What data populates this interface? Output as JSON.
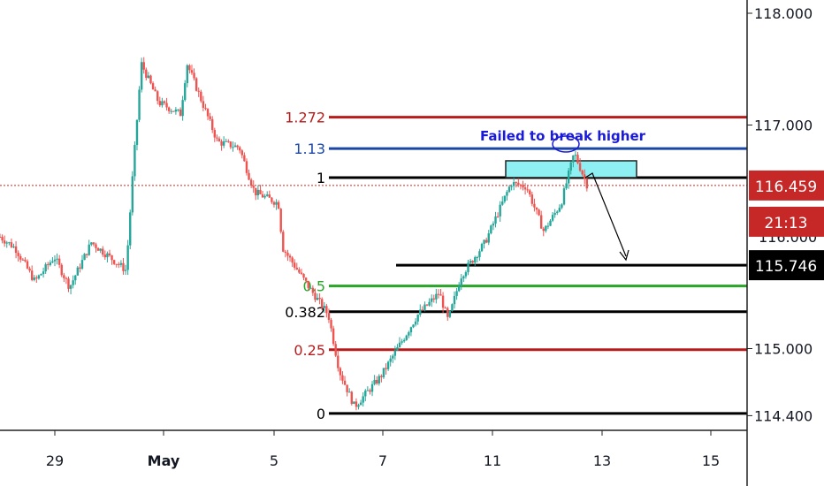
{
  "chart_data": {
    "type": "candlestick",
    "title": "",
    "xlabel": "",
    "ylabel": "",
    "ylim": [
      114.28,
      118.15
    ],
    "y_ticks": [
      "118.000",
      "117.000",
      "115.000",
      "114.400"
    ],
    "x_ticks": [
      "29",
      "May",
      "5",
      "7",
      "11",
      "13",
      "15"
    ],
    "colors": {
      "up": "#26a69a",
      "down": "#ef5350"
    },
    "price_anchors": [
      {
        "t": 0,
        "p": 116.0
      },
      {
        "t": 0.7,
        "p": 115.9
      },
      {
        "t": 1.6,
        "p": 115.6
      },
      {
        "t": 2.5,
        "p": 115.82
      },
      {
        "t": 3.2,
        "p": 115.55
      },
      {
        "t": 4.2,
        "p": 115.95
      },
      {
        "t": 5.8,
        "p": 115.7
      },
      {
        "t": 6.1,
        "p": 116.55
      },
      {
        "t": 6.5,
        "p": 117.55
      },
      {
        "t": 7.3,
        "p": 117.2
      },
      {
        "t": 8.3,
        "p": 117.1
      },
      {
        "t": 8.6,
        "p": 117.55
      },
      {
        "t": 10.0,
        "p": 116.85
      },
      {
        "t": 11.0,
        "p": 116.8
      },
      {
        "t": 11.7,
        "p": 116.4
      },
      {
        "t": 12.8,
        "p": 116.3
      },
      {
        "t": 13.0,
        "p": 115.9
      },
      {
        "t": 14.2,
        "p": 115.55
      },
      {
        "t": 15.1,
        "p": 115.3
      },
      {
        "t": 15.6,
        "p": 114.8
      },
      {
        "t": 16.3,
        "p": 114.48
      },
      {
        "t": 17.5,
        "p": 114.75
      },
      {
        "t": 19.2,
        "p": 115.3
      },
      {
        "t": 20.2,
        "p": 115.5
      },
      {
        "t": 20.6,
        "p": 115.25
      },
      {
        "t": 21.2,
        "p": 115.65
      },
      {
        "t": 22.3,
        "p": 115.95
      },
      {
        "t": 23.5,
        "p": 116.48
      },
      {
        "t": 24.2,
        "p": 116.45
      },
      {
        "t": 25.0,
        "p": 116.05
      },
      {
        "t": 25.8,
        "p": 116.3
      },
      {
        "t": 26.4,
        "p": 116.75
      },
      {
        "t": 27.0,
        "p": 116.46
      }
    ],
    "fib_levels": [
      {
        "label": "1.272",
        "value": 117.07,
        "color": "#b71c1c"
      },
      {
        "label": "1.13",
        "value": 116.79,
        "color": "#1a47a6"
      },
      {
        "label": "1",
        "value": 116.53,
        "color": "#000000"
      },
      {
        "label": "0.5",
        "value": 115.56,
        "color": "#2aa52a"
      },
      {
        "label": "0.382",
        "value": 115.33,
        "color": "#000000"
      },
      {
        "label": "0.25",
        "value": 114.99,
        "color": "#b71c1c"
      },
      {
        "label": "0",
        "value": 114.42,
        "color": "#000000"
      }
    ],
    "target_line": {
      "value": 115.746
    },
    "current_price": {
      "value": 116.459,
      "label": "116.459",
      "countdown": "21:13"
    },
    "price_tags": [
      {
        "label": "116.459",
        "bg": "#c62828",
        "fg": "#ffffff"
      },
      {
        "label": "21:13",
        "bg": "#c62828",
        "fg": "#ffffff"
      },
      {
        "label": "115.746",
        "bg": "#000000",
        "fg": "#ffffff"
      }
    ],
    "annotation": "Failed to break higher",
    "resistance_box": {
      "y_top": 116.68,
      "y_bottom": 116.53,
      "fill": "#8ef0f2"
    }
  }
}
